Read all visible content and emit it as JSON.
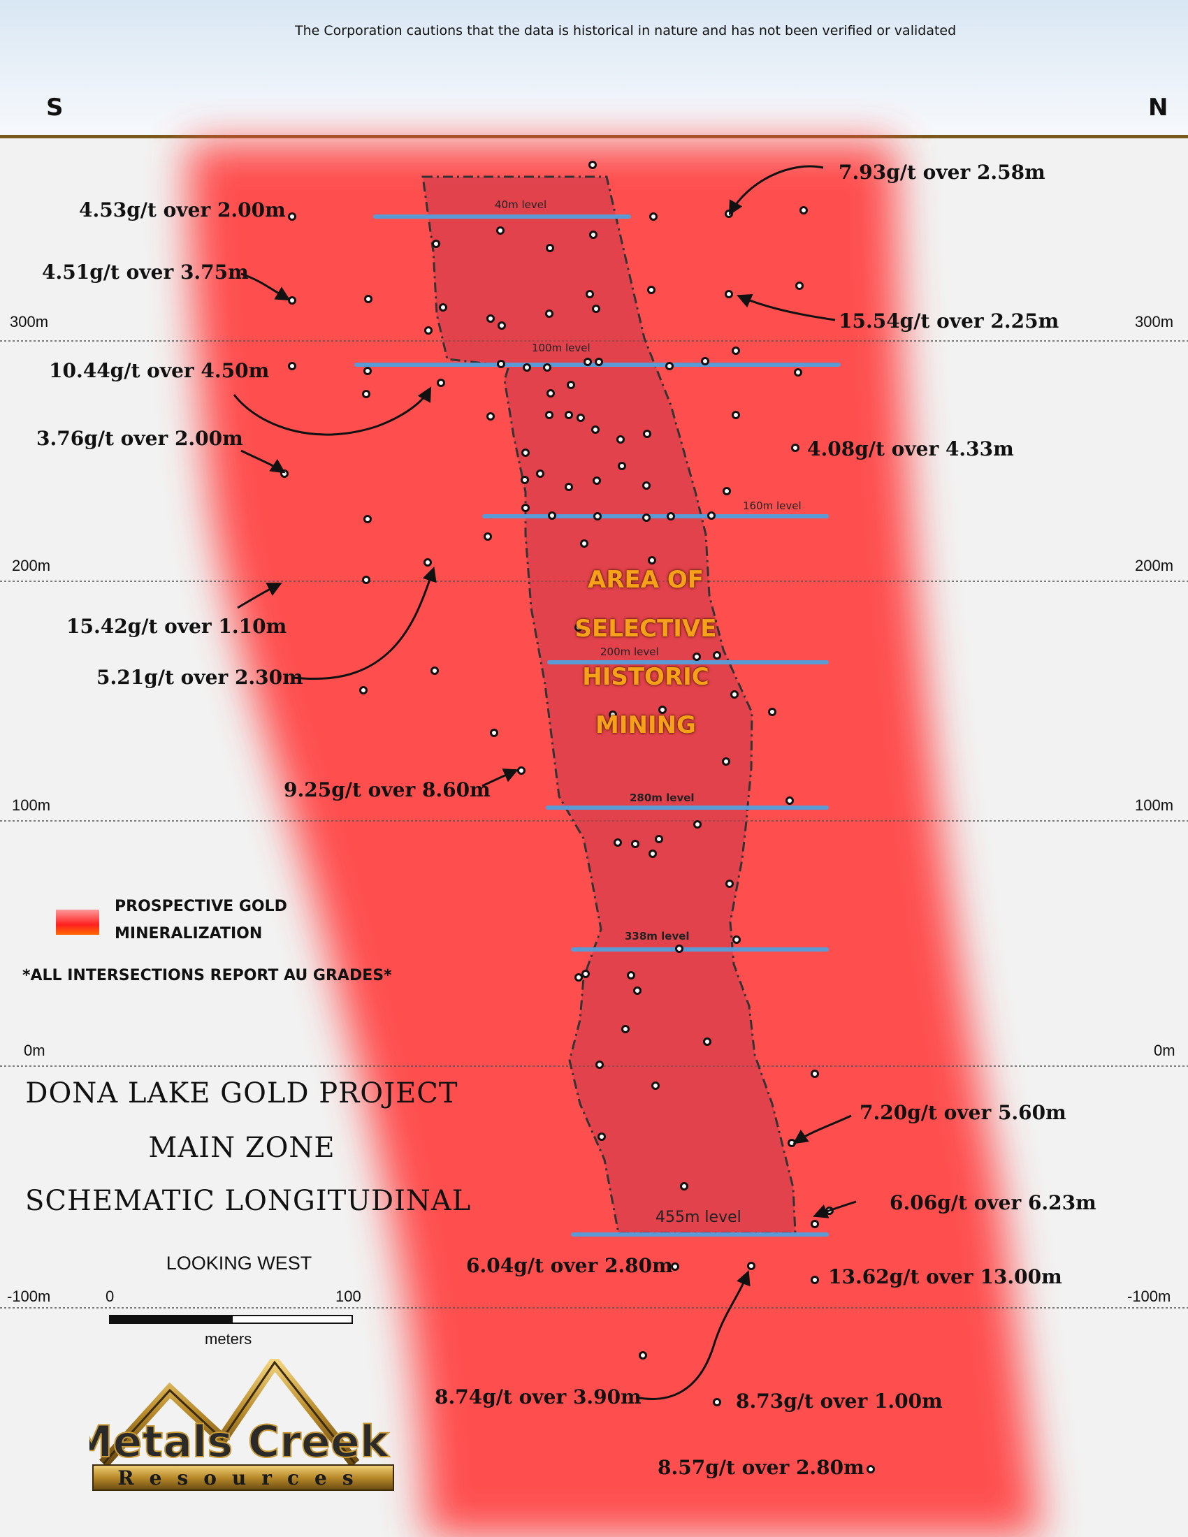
{
  "caution": "The Corporation cautions that the data is historical in nature and has not been verified or validated",
  "directions": {
    "south": "S",
    "north": "N"
  },
  "elevations": [
    "300m",
    "200m",
    "100m",
    "0m",
    "-100m"
  ],
  "levels": {
    "l40": "40m level",
    "l100": "100m level",
    "l160": "160m level",
    "l200": "200m level",
    "l280": "280m level",
    "l338": "338m level",
    "l455": "455m level"
  },
  "grades": {
    "g1": "4.53g/t over 2.00m",
    "g2": "4.51g/t over 3.75m",
    "g3": "10.44g/t over 4.50m",
    "g4": "3.76g/t over 2.00m",
    "g5": "15.42g/t over 1.10m",
    "g6": "5.21g/t over 2.30m",
    "g7": "9.25g/t over 8.60m",
    "g8": "7.93g/t over 2.58m",
    "g9": "15.54g/t over 2.25m",
    "g10": "4.08g/t over 4.33m",
    "g11": "7.20g/t over 5.60m",
    "g12": "6.06g/t over 6.23m",
    "g13": "6.04g/t over 2.80m",
    "g14": "13.62g/t over 13.00m",
    "g15": "8.74g/t over 3.90m",
    "g16": "8.73g/t over 1.00m",
    "g17": "8.57g/t over 2.80m"
  },
  "mining_area": [
    "AREA OF",
    "SELECTIVE",
    "HISTORIC",
    "MINING"
  ],
  "legend": {
    "line1": "PROSPECTIVE GOLD",
    "line2": "MINERALIZATION",
    "note": "*ALL INTERSECTIONS REPORT AU GRADES*"
  },
  "project": {
    "line1": "DONA LAKE GOLD PROJECT",
    "line2": "MAIN ZONE",
    "line3": "SCHEMATIC LONGITUDINAL",
    "view": "LOOKING WEST"
  },
  "scale": {
    "start": "0",
    "end": "100",
    "unit": "meters"
  },
  "logo": {
    "name": "Metals Creek",
    "sub": "Resources"
  },
  "colors": {
    "mineralization": "#ff3b3b",
    "mining_area": "#d9404a",
    "level_line": "#5b9bd5",
    "area_text": "#f7a11a"
  }
}
